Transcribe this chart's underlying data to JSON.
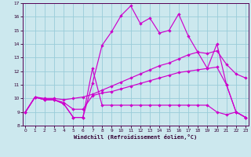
{
  "background_color": "#cce8ee",
  "grid_color": "#99ccd9",
  "line_color": "#cc00cc",
  "spine_color": "#550055",
  "tick_color": "#330033",
  "xlim": [
    -0.3,
    23.3
  ],
  "ylim": [
    8,
    17
  ],
  "xticks": [
    0,
    1,
    2,
    3,
    4,
    5,
    6,
    7,
    8,
    9,
    10,
    11,
    12,
    13,
    14,
    15,
    16,
    17,
    18,
    19,
    20,
    21,
    22,
    23
  ],
  "yticks": [
    8,
    9,
    10,
    11,
    12,
    13,
    14,
    15,
    16,
    17
  ],
  "xlabel": "Windchill (Refroidissement éolien,°C)",
  "curve_zigzag_x": [
    0,
    1,
    2,
    3,
    4,
    5,
    6,
    7,
    8,
    9,
    10,
    11,
    12,
    13,
    14,
    15,
    16,
    17,
    18,
    19,
    20,
    21,
    22,
    23
  ],
  "curve_zigzag_y": [
    9.0,
    10.1,
    9.9,
    9.9,
    9.6,
    8.6,
    8.6,
    12.2,
    9.5,
    9.5,
    9.5,
    9.5,
    9.5,
    9.5,
    9.5,
    9.5,
    9.5,
    9.5,
    9.5,
    9.5,
    9.0,
    8.8,
    9.0,
    8.6
  ],
  "curve_peak_x": [
    0,
    1,
    2,
    3,
    4,
    5,
    6,
    7,
    8,
    9,
    10,
    11,
    12,
    13,
    14,
    15,
    16,
    17,
    18,
    19,
    20,
    21,
    22,
    23
  ],
  "curve_peak_y": [
    9.0,
    10.1,
    9.9,
    9.9,
    9.6,
    8.6,
    8.6,
    11.1,
    13.9,
    14.9,
    16.1,
    16.8,
    15.5,
    15.9,
    14.8,
    15.0,
    16.2,
    14.6,
    13.4,
    12.2,
    14.0,
    11.0,
    9.0,
    8.6
  ],
  "curve_slope1_x": [
    0,
    1,
    2,
    3,
    4,
    5,
    6,
    7,
    8,
    9,
    10,
    11,
    12,
    13,
    14,
    15,
    16,
    17,
    18,
    19,
    20,
    21,
    22,
    23
  ],
  "curve_slope1_y": [
    9.0,
    10.1,
    10.0,
    10.0,
    9.9,
    10.0,
    10.1,
    10.3,
    10.6,
    10.9,
    11.2,
    11.5,
    11.8,
    12.1,
    12.4,
    12.6,
    12.9,
    13.2,
    13.4,
    13.3,
    13.5,
    12.5,
    11.8,
    11.5
  ],
  "curve_slope2_x": [
    0,
    1,
    2,
    3,
    4,
    5,
    6,
    7,
    8,
    9,
    10,
    11,
    12,
    13,
    14,
    15,
    16,
    17,
    18,
    19,
    20,
    21,
    22,
    23
  ],
  "curve_slope2_y": [
    9.0,
    10.1,
    9.9,
    9.9,
    9.7,
    9.2,
    9.2,
    10.2,
    10.4,
    10.5,
    10.7,
    10.9,
    11.1,
    11.3,
    11.5,
    11.7,
    11.9,
    12.0,
    12.1,
    12.2,
    12.3,
    11.0,
    9.0,
    8.6
  ]
}
